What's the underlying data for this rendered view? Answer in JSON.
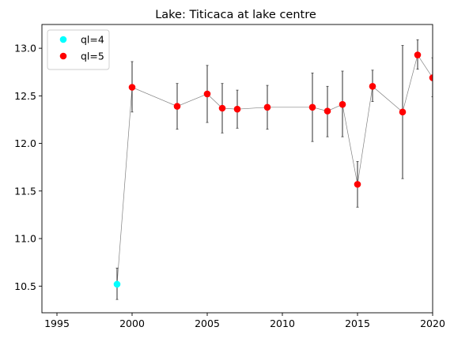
{
  "chart_data": {
    "type": "scatter",
    "title": "Lake: Titicaca at lake centre",
    "xlabel": "",
    "ylabel": "",
    "xlim": [
      1994,
      2020
    ],
    "ylim": [
      10.22,
      13.25
    ],
    "x_ticks": [
      1995,
      2000,
      2005,
      2010,
      2015,
      2020
    ],
    "y_ticks": [
      10.5,
      11.0,
      11.5,
      12.0,
      12.5,
      13.0
    ],
    "grid": false,
    "legend_position": "top-left",
    "connect_line_color": "#808080",
    "errorbar_color": "#404040",
    "series": [
      {
        "name": "ql=4",
        "color": "#00ffff",
        "points": [
          {
            "x": 1999,
            "y": 10.52,
            "err_low": 10.36,
            "err_high": 10.69
          }
        ]
      },
      {
        "name": "ql=5",
        "color": "#ff0000",
        "points": [
          {
            "x": 2000,
            "y": 12.59,
            "err_low": 12.33,
            "err_high": 12.86
          },
          {
            "x": 2003,
            "y": 12.39,
            "err_low": 12.15,
            "err_high": 12.63
          },
          {
            "x": 2005,
            "y": 12.52,
            "err_low": 12.22,
            "err_high": 12.82
          },
          {
            "x": 2006,
            "y": 12.37,
            "err_low": 12.11,
            "err_high": 12.63
          },
          {
            "x": 2007,
            "y": 12.36,
            "err_low": 12.16,
            "err_high": 12.56
          },
          {
            "x": 2009,
            "y": 12.38,
            "err_low": 12.15,
            "err_high": 12.61
          },
          {
            "x": 2012,
            "y": 12.38,
            "err_low": 12.02,
            "err_high": 12.74
          },
          {
            "x": 2013,
            "y": 12.34,
            "err_low": 12.07,
            "err_high": 12.6
          },
          {
            "x": 2014,
            "y": 12.41,
            "err_low": 12.07,
            "err_high": 12.76
          },
          {
            "x": 2015,
            "y": 11.57,
            "err_low": 11.33,
            "err_high": 11.81
          },
          {
            "x": 2016,
            "y": 12.6,
            "err_low": 12.44,
            "err_high": 12.77
          },
          {
            "x": 2018,
            "y": 12.33,
            "err_low": 11.63,
            "err_high": 13.03
          },
          {
            "x": 2019,
            "y": 12.93,
            "err_low": 12.78,
            "err_high": 13.09
          },
          {
            "x": 2020,
            "y": 12.69,
            "err_low": 12.49,
            "err_high": 12.9
          }
        ]
      }
    ]
  }
}
